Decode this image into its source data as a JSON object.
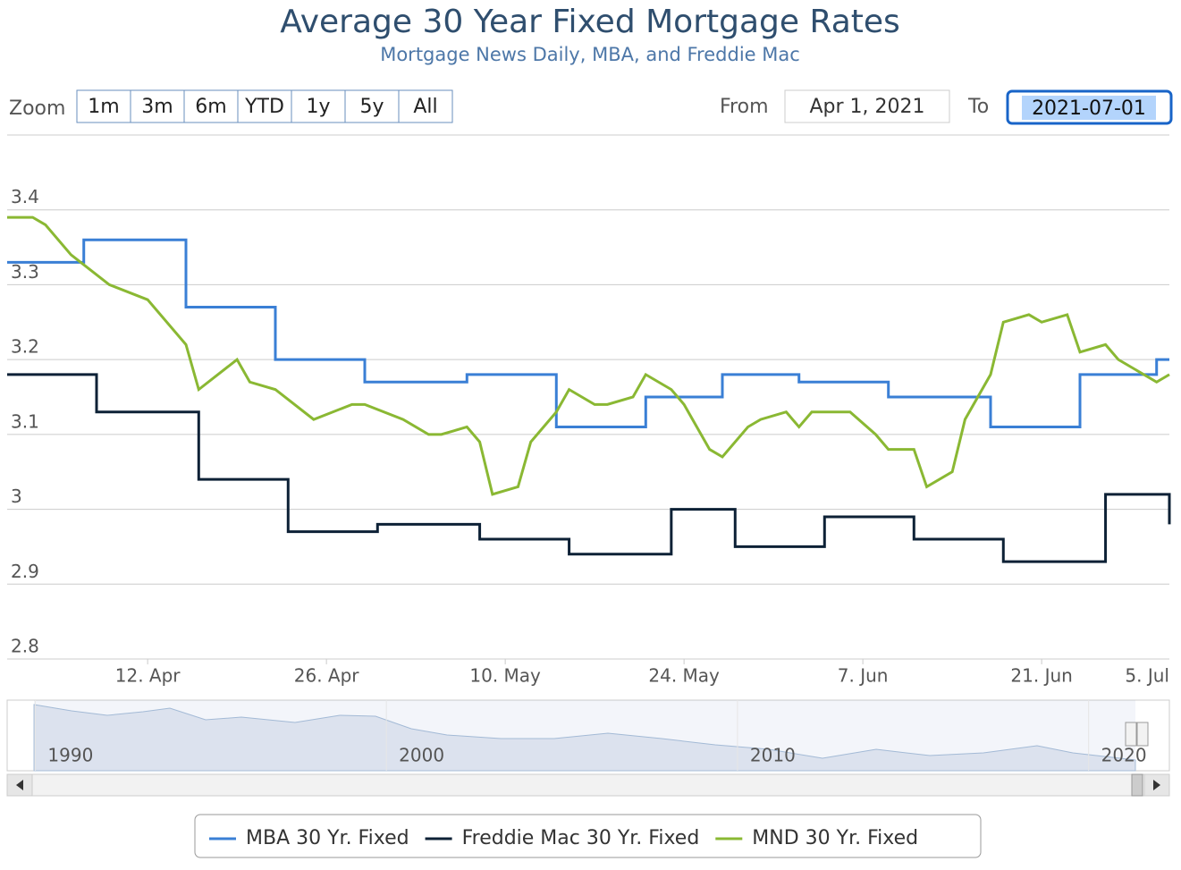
{
  "header": {
    "title": "Average 30 Year Fixed Mortgage Rates",
    "subtitle": "Mortgage News Daily, MBA, and Freddie Mac"
  },
  "controls": {
    "zoom_label": "Zoom",
    "zoom_buttons": [
      "1m",
      "3m",
      "6m",
      "YTD",
      "1y",
      "5y",
      "All"
    ],
    "from_label": "From",
    "from_value": "Apr 1, 2021",
    "to_label": "To",
    "to_value": "2021-07-01"
  },
  "chart_data": {
    "type": "line",
    "step_series": [
      0,
      1
    ],
    "xlim": [
      "2021-04-01",
      "2021-07-01"
    ],
    "xticks": [
      {
        "value": "2021-04-12",
        "label": "12. Apr"
      },
      {
        "value": "2021-04-26",
        "label": "26. Apr"
      },
      {
        "value": "2021-05-10",
        "label": "10. May"
      },
      {
        "value": "2021-05-24",
        "label": "24. May"
      },
      {
        "value": "2021-06-07",
        "label": "7. Jun"
      },
      {
        "value": "2021-06-21",
        "label": "21. Jun"
      },
      {
        "value": "2021-07-05",
        "label": "5. Jul"
      }
    ],
    "ylim": [
      2.8,
      3.5
    ],
    "yticks": [
      2.8,
      2.9,
      3,
      3.1,
      3.2,
      3.3,
      3.4
    ],
    "grid": true,
    "series": [
      {
        "name": "MBA 30 Yr. Fixed",
        "color": "#3a7fd5",
        "step": true,
        "x": [
          "2021-04-01",
          "2021-04-07",
          "2021-04-15",
          "2021-04-22",
          "2021-04-29",
          "2021-05-07",
          "2021-05-14",
          "2021-05-21",
          "2021-05-27",
          "2021-06-02",
          "2021-06-09",
          "2021-06-17",
          "2021-06-24",
          "2021-06-30"
        ],
        "values": [
          3.33,
          3.36,
          3.27,
          3.2,
          3.17,
          3.18,
          3.11,
          3.15,
          3.18,
          3.17,
          3.15,
          3.11,
          3.18,
          3.2
        ]
      },
      {
        "name": "Freddie Mac 30 Yr. Fixed",
        "color": "#0d2136",
        "step": true,
        "x": [
          "2021-04-01",
          "2021-04-08",
          "2021-04-16",
          "2021-04-23",
          "2021-04-30",
          "2021-05-08",
          "2021-05-15",
          "2021-05-23",
          "2021-05-28",
          "2021-06-04",
          "2021-06-11",
          "2021-06-18",
          "2021-06-26",
          "2021-07-01"
        ],
        "values": [
          3.18,
          3.13,
          3.04,
          2.97,
          2.98,
          2.96,
          2.94,
          3,
          2.95,
          2.99,
          2.96,
          2.93,
          3.02,
          2.98
        ]
      },
      {
        "name": "MND 30 Yr. Fixed",
        "color": "#8ab833",
        "step": false,
        "x": [
          "2021-04-01",
          "2021-04-03",
          "2021-04-04",
          "2021-04-06",
          "2021-04-09",
          "2021-04-12",
          "2021-04-15",
          "2021-04-16",
          "2021-04-19",
          "2021-04-20",
          "2021-04-22",
          "2021-04-25",
          "2021-04-28",
          "2021-04-29",
          "2021-05-02",
          "2021-05-04",
          "2021-05-05",
          "2021-05-07",
          "2021-05-08",
          "2021-05-09",
          "2021-05-11",
          "2021-05-12",
          "2021-05-14",
          "2021-05-15",
          "2021-05-17",
          "2021-05-18",
          "2021-05-20",
          "2021-05-21",
          "2021-05-23",
          "2021-05-24",
          "2021-05-26",
          "2021-05-27",
          "2021-05-29",
          "2021-05-30",
          "2021-06-01",
          "2021-06-02",
          "2021-06-03",
          "2021-06-05",
          "2021-06-06",
          "2021-06-08",
          "2021-06-09",
          "2021-06-11",
          "2021-06-12",
          "2021-06-14",
          "2021-06-15",
          "2021-06-17",
          "2021-06-18",
          "2021-06-20",
          "2021-06-21",
          "2021-06-23",
          "2021-06-24",
          "2021-06-26",
          "2021-06-27",
          "2021-06-28",
          "2021-06-30",
          "2021-07-01"
        ],
        "values": [
          3.39,
          3.39,
          3.38,
          3.34,
          3.3,
          3.28,
          3.22,
          3.16,
          3.2,
          3.17,
          3.16,
          3.12,
          3.14,
          3.14,
          3.12,
          3.1,
          3.1,
          3.11,
          3.09,
          3.02,
          3.03,
          3.09,
          3.13,
          3.16,
          3.14,
          3.14,
          3.15,
          3.18,
          3.16,
          3.14,
          3.08,
          3.07,
          3.11,
          3.12,
          3.13,
          3.11,
          3.13,
          3.13,
          3.13,
          3.1,
          3.08,
          3.08,
          3.03,
          3.05,
          3.12,
          3.18,
          3.25,
          3.26,
          3.25,
          3.26,
          3.21,
          3.22,
          3.2,
          3.19,
          3.17,
          3.18
        ]
      }
    ]
  },
  "navigator": {
    "xlim": [
      1989.2,
      2022.3
    ],
    "xticks": [
      1990,
      2000,
      2010,
      2020
    ]
  }
}
